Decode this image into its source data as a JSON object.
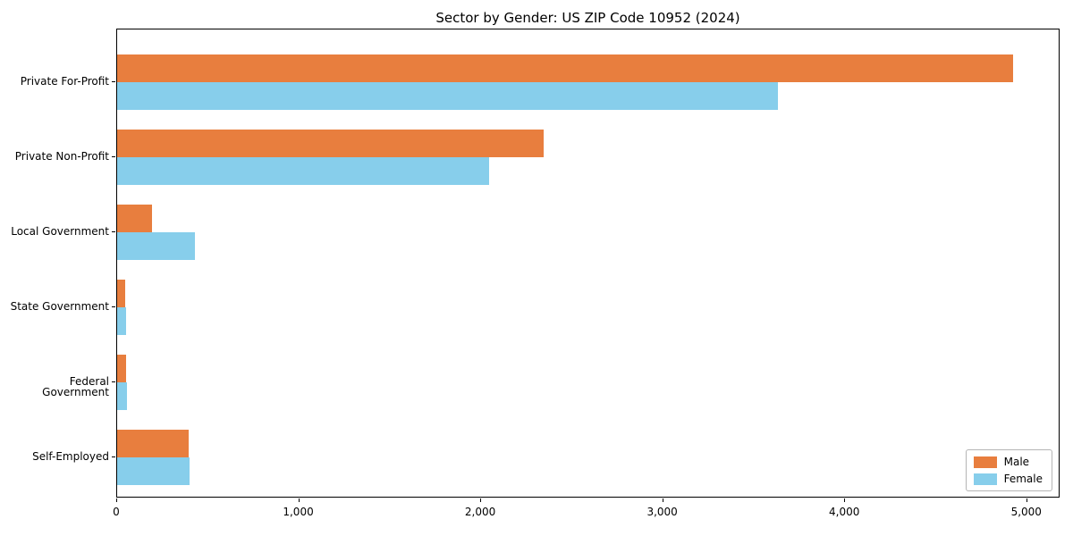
{
  "title": "Sector by Gender: US ZIP Code 10952 (2024)",
  "chart_data": {
    "type": "bar",
    "orientation": "horizontal",
    "title": "Sector by Gender: US ZIP Code 10952 (2024)",
    "categories": [
      "Private For-Profit",
      "Private Non-Profit",
      "Local Government",
      "State Government",
      "Federal Government",
      "Self-Employed"
    ],
    "series": [
      {
        "name": "Male",
        "color": "#e87e3e",
        "values": [
          4930,
          2350,
          190,
          45,
          50,
          395
        ]
      },
      {
        "name": "Female",
        "color": "#87ceeb",
        "values": [
          3635,
          2050,
          430,
          50,
          55,
          400
        ]
      }
    ],
    "xlabel": "",
    "ylabel": "",
    "xlim": [
      0,
      5183
    ],
    "xticks": [
      0,
      1000,
      2000,
      3000,
      4000,
      5000
    ],
    "xtick_labels": [
      "0",
      "1,000",
      "2,000",
      "3,000",
      "4,000",
      "5,000"
    ],
    "legend_position": "lower right",
    "grid": false,
    "colors": {
      "male": "#e87e3e",
      "female": "#87ceeb",
      "axis": "#000000",
      "background": "#ffffff"
    }
  }
}
